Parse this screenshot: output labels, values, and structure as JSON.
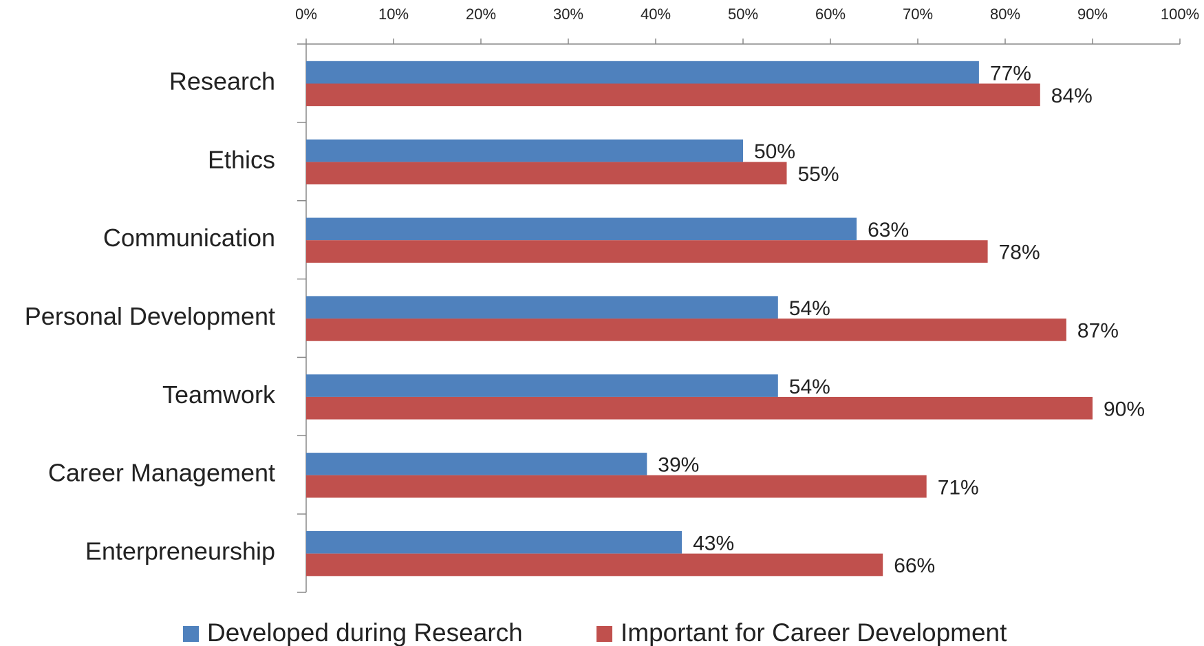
{
  "chart_data": {
    "type": "hbar",
    "categories": [
      "Research",
      "Ethics",
      "Communication",
      "Personal Development",
      "Teamwork",
      "Career Management",
      "Enterpreneurship"
    ],
    "series": [
      {
        "name": "Developed during Research",
        "color": "#4f81bd",
        "values": [
          77,
          50,
          63,
          54,
          54,
          39,
          43
        ],
        "value_labels": [
          "77%",
          "50%",
          "63%",
          "54%",
          "54%",
          "39%",
          "43%"
        ]
      },
      {
        "name": "Important for Career Development",
        "color": "#c0504d",
        "values": [
          84,
          55,
          78,
          87,
          90,
          71,
          66
        ],
        "value_labels": [
          "84%",
          "55%",
          "78%",
          "87%",
          "90%",
          "71%",
          "66%"
        ]
      }
    ],
    "xlim": [
      0,
      100
    ],
    "xticks": [
      {
        "value": 0,
        "label": "0%"
      },
      {
        "value": 10,
        "label": "10%"
      },
      {
        "value": 20,
        "label": "20%"
      },
      {
        "value": 30,
        "label": "30%"
      },
      {
        "value": 40,
        "label": "40%"
      },
      {
        "value": 50,
        "label": "50%"
      },
      {
        "value": 60,
        "label": "60%"
      },
      {
        "value": 70,
        "label": "70%"
      },
      {
        "value": 80,
        "label": "80%"
      },
      {
        "value": 90,
        "label": "90%"
      },
      {
        "value": 100,
        "label": "100%"
      }
    ],
    "legend": "bottom",
    "grid": false
  }
}
